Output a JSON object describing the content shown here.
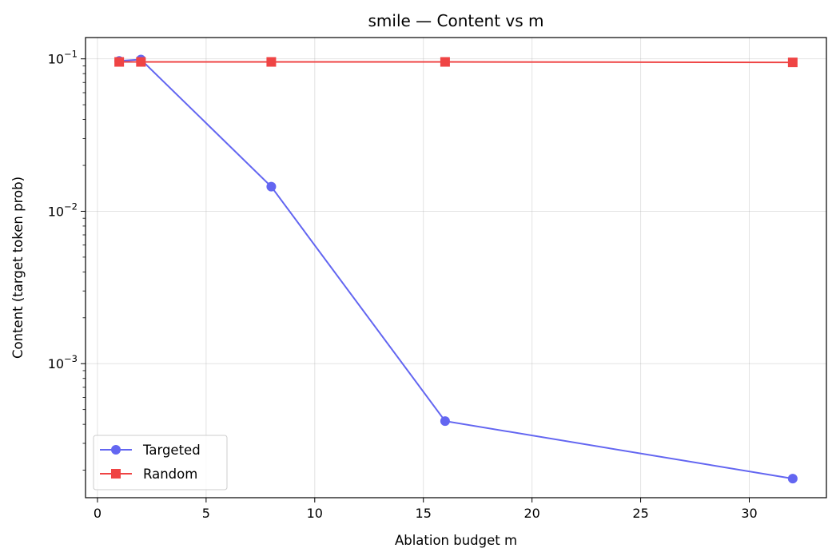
{
  "chart_data": {
    "type": "line",
    "title": "smile — Content vs m",
    "xlabel": "Ablation budget m",
    "ylabel": "Content (target token prob)",
    "x_scale": "linear",
    "y_scale": "log",
    "xlim": [
      -0.55,
      33.55
    ],
    "ylim": [
      0.000132,
      0.138
    ],
    "x_ticks": [
      0,
      5,
      10,
      15,
      20,
      25,
      30
    ],
    "x_tick_labels": [
      "0",
      "5",
      "10",
      "15",
      "20",
      "25",
      "30"
    ],
    "y_ticks": [
      0.001,
      0.01,
      0.1
    ],
    "y_tick_labels": [
      {
        "base": "10",
        "exp": "−3"
      },
      {
        "base": "10",
        "exp": "−2"
      },
      {
        "base": "10",
        "exp": "−1"
      }
    ],
    "grid": true,
    "legend_position": "lower-left",
    "series": [
      {
        "name": "Targeted",
        "color": "#6366f1",
        "marker": "circle",
        "x": [
          1,
          2,
          8,
          16,
          32
        ],
        "y": [
          0.097,
          0.099,
          0.0145,
          0.00042,
          0.000176
        ]
      },
      {
        "name": "Random",
        "color": "#ef4444",
        "marker": "square",
        "x": [
          1,
          2,
          8,
          16,
          32
        ],
        "y": [
          0.0955,
          0.0955,
          0.0955,
          0.0955,
          0.0948
        ]
      }
    ]
  }
}
